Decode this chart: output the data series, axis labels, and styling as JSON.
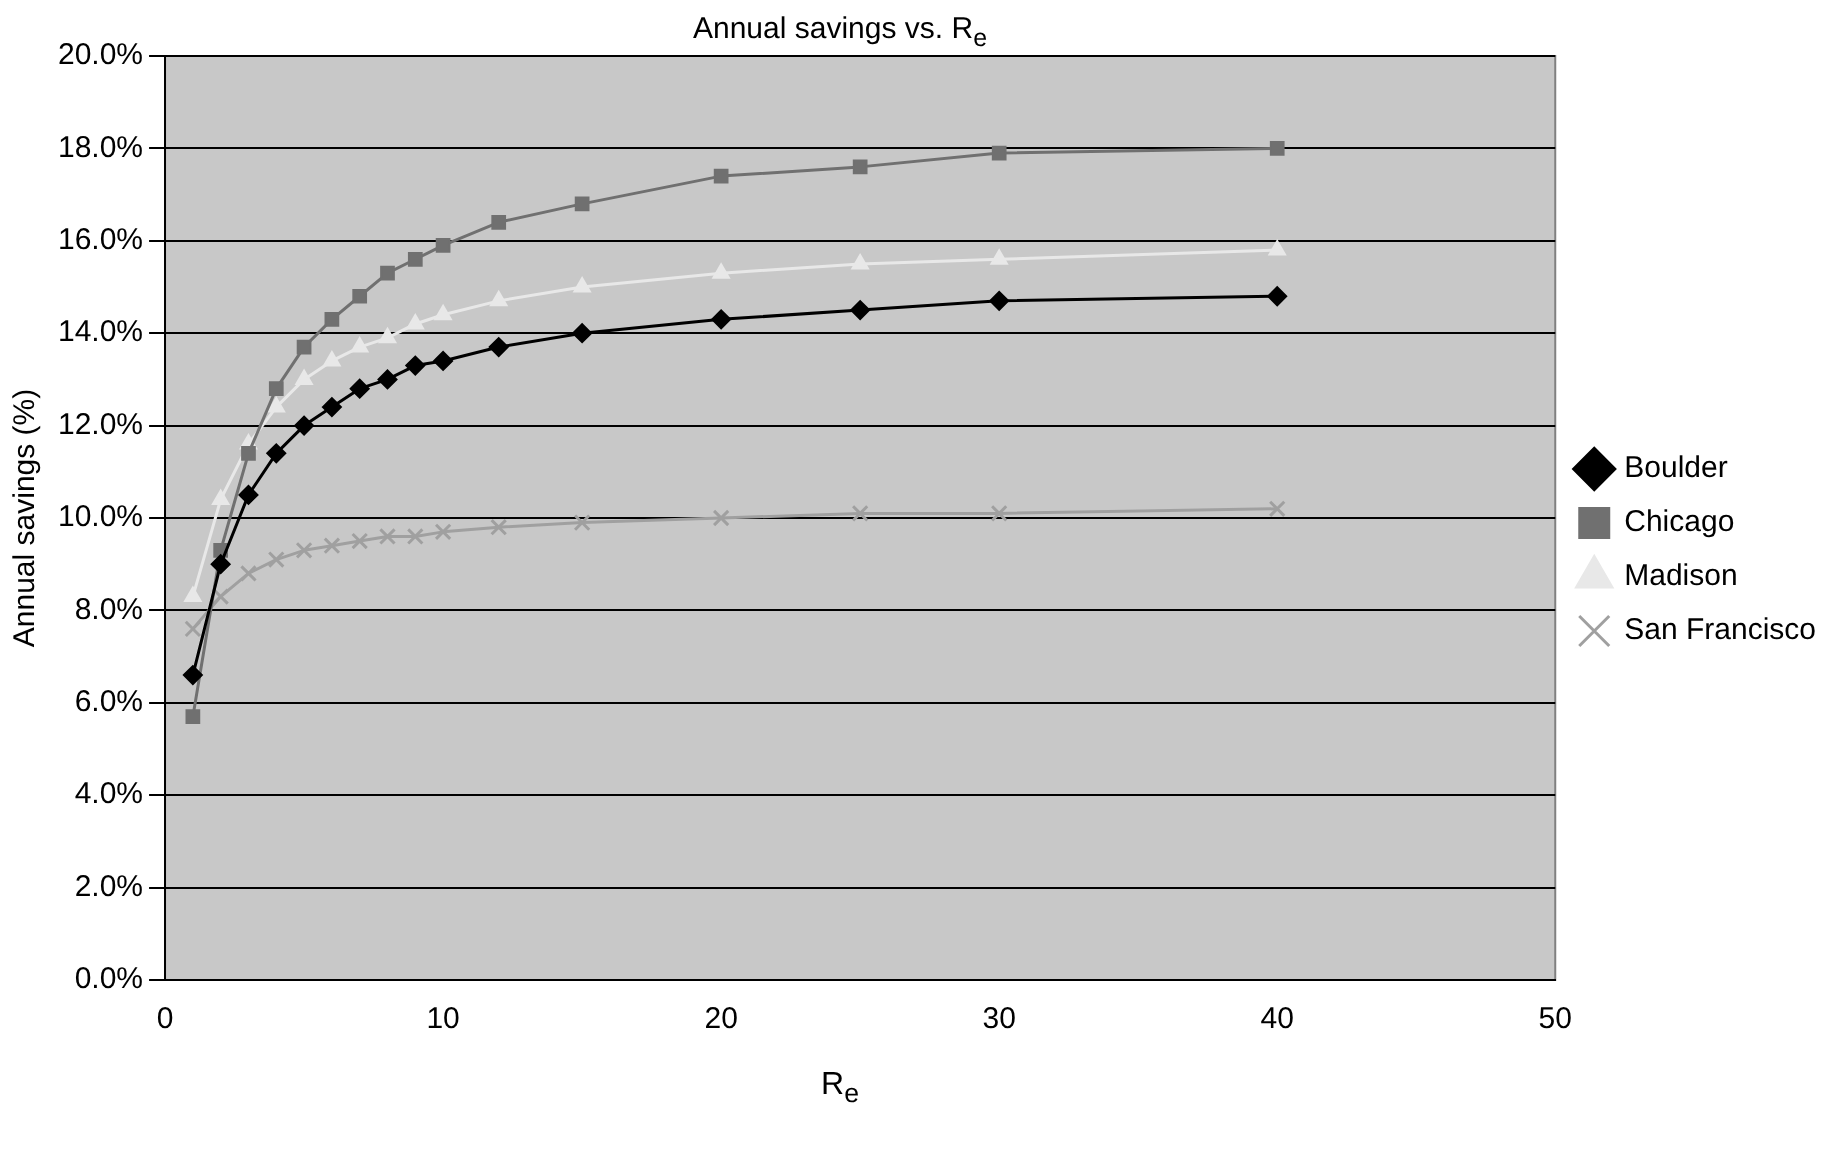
{
  "chart_data": {
    "type": "line",
    "title": "Annual savings vs. R$_{e}$",
    "xlabel": "R$_{e}$",
    "ylabel": "Annual savings (%)",
    "x": [
      1,
      2,
      3,
      4,
      5,
      6,
      7,
      8,
      9,
      10,
      12,
      15,
      20,
      25,
      30,
      40
    ],
    "xlim": [
      0,
      50
    ],
    "xticks": [
      0,
      10,
      20,
      30,
      40,
      50
    ],
    "ylim": [
      0,
      20
    ],
    "yticks": [
      {
        "value": 0,
        "label": "0.0%"
      },
      {
        "value": 2,
        "label": "2.0%"
      },
      {
        "value": 4,
        "label": "4.0%"
      },
      {
        "value": 6,
        "label": "6.0%"
      },
      {
        "value": 8,
        "label": "8.0%"
      },
      {
        "value": 10,
        "label": "10.0%"
      },
      {
        "value": 12,
        "label": "12.0%"
      },
      {
        "value": 14,
        "label": "14.0%"
      },
      {
        "value": 16,
        "label": "16.0%"
      },
      {
        "value": 18,
        "label": "18.0%"
      },
      {
        "value": 20,
        "label": "20.0%"
      }
    ],
    "grid": "y",
    "legend": "right",
    "line_style": "solid",
    "series": [
      {
        "name": "Boulder",
        "color": "#000000",
        "marker": "diamond",
        "values": [
          6.6,
          9.0,
          10.5,
          11.4,
          12.0,
          12.4,
          12.8,
          13.0,
          13.3,
          13.4,
          13.7,
          14.0,
          14.3,
          14.5,
          14.7,
          14.8
        ]
      },
      {
        "name": "Chicago",
        "color": "#707070",
        "marker": "square",
        "values": [
          5.7,
          9.3,
          11.4,
          12.8,
          13.7,
          14.3,
          14.8,
          15.3,
          15.6,
          15.9,
          16.4,
          16.8,
          17.4,
          17.6,
          17.9,
          18.0
        ]
      },
      {
        "name": "Madison",
        "color": "#e8e8e8",
        "marker": "triangle",
        "values": [
          8.3,
          10.4,
          11.6,
          12.4,
          13.0,
          13.4,
          13.7,
          13.9,
          14.2,
          14.4,
          14.7,
          15.0,
          15.3,
          15.5,
          15.6,
          15.8
        ]
      },
      {
        "name": "San Francisco",
        "color": "#a0a0a0",
        "marker": "cross",
        "values": [
          7.6,
          8.3,
          8.8,
          9.1,
          9.3,
          9.4,
          9.5,
          9.6,
          9.6,
          9.7,
          9.8,
          9.9,
          10.0,
          10.1,
          10.1,
          10.2
        ]
      }
    ]
  }
}
